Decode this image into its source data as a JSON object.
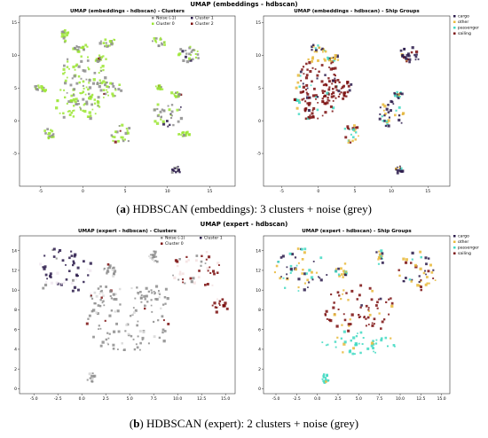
{
  "figure": {
    "top_title": "UMAP (embeddings - hdbscan)",
    "bottom_title": "UMAP (expert - hdbscan)",
    "caption_a_tag": "a",
    "caption_a_text": "HDBSCAN (embeddings): 3 clusters + noise (grey)",
    "caption_b_tag": "b",
    "caption_b_text": "HDBSCAN (expert): 2 clusters + noise (grey)"
  },
  "colors": {
    "noise": "#8c8c8c",
    "cluster0_emb": "#9be533",
    "cluster1_emb": "#2a1a4a",
    "cluster2_emb": "#7a0d0d",
    "cluster0_exp": "#7a0d0d",
    "cluster1_exp": "#2a1a4a",
    "cargo": "#2a1a4a",
    "other": "#e8b83a",
    "passenger": "#3fd9c2",
    "sailing": "#7a0d0d"
  },
  "chart_data": [
    {
      "type": "scatter",
      "title": "UMAP (embeddings - hdbscan) - Clusters",
      "xlim": [
        -7.5,
        18
      ],
      "ylim": [
        -10,
        16
      ],
      "xticks": [
        "-5",
        "0",
        "5",
        "10",
        "15"
      ],
      "yticks": [
        "15",
        "10",
        "5",
        "0",
        "-5"
      ],
      "legend_placement": "top-right",
      "legend": [
        "Noise (-1)",
        "Cluster 0",
        "Cluster 1",
        "Cluster 2"
      ],
      "series": [
        {
          "name": "Noise (-1)",
          "color_key": "noise"
        },
        {
          "name": "Cluster 0",
          "color_key": "cluster0_emb"
        },
        {
          "name": "Cluster 1",
          "color_key": "cluster1_emb"
        },
        {
          "name": "Cluster 2",
          "color_key": "cluster2_emb"
        }
      ],
      "blobs": [
        {
          "x": 0,
          "y": 6,
          "rx": 3.0,
          "ry": 4.0,
          "s": 0.3
        },
        {
          "x": -0.5,
          "y": 2.5,
          "rx": 2.8,
          "ry": 2.5,
          "s": 0.3
        },
        {
          "x": 3,
          "y": 5,
          "rx": 1.5,
          "ry": 1.8,
          "s": 0.3
        },
        {
          "x": 0,
          "y": 11,
          "rx": 1.2,
          "ry": 0.6,
          "s": 0.3
        },
        {
          "x": -2,
          "y": 13,
          "rx": 0.4,
          "ry": 1.0,
          "s": 0.3
        },
        {
          "x": 2,
          "y": 9.5,
          "rx": 1.0,
          "ry": 0.6,
          "s": 0.3
        },
        {
          "x": 3,
          "y": 12,
          "rx": 1.0,
          "ry": 0.6,
          "s": 0.3
        },
        {
          "x": 9,
          "y": 12,
          "rx": 0.8,
          "ry": 0.6,
          "s": 0.3
        },
        {
          "x": 12.5,
          "y": 10,
          "rx": 1.5,
          "ry": 1.3,
          "s": 0.3
        },
        {
          "x": 10,
          "y": 1,
          "rx": 1.8,
          "ry": 2.0,
          "s": 0.3
        },
        {
          "x": 11,
          "y": 4,
          "rx": 0.6,
          "ry": 0.5,
          "s": 0.3
        },
        {
          "x": 12,
          "y": -2,
          "rx": 0.6,
          "ry": 0.5,
          "s": 0.3
        },
        {
          "x": 4.5,
          "y": -2,
          "rx": 1.2,
          "ry": 1.5,
          "s": 0.3
        },
        {
          "x": -5,
          "y": 5,
          "rx": 0.8,
          "ry": 0.5,
          "s": 0.3
        },
        {
          "x": -4,
          "y": -2,
          "rx": 0.8,
          "ry": 0.7,
          "s": 0.3
        },
        {
          "x": 9,
          "y": 5,
          "rx": 0.5,
          "ry": 0.4,
          "s": 0.3
        },
        {
          "x": 11,
          "y": -7.5,
          "rx": 0.5,
          "ry": 0.5,
          "s": 0.3
        }
      ]
    },
    {
      "type": "scatter",
      "title": "UMAP (embeddings - hdbscan) - Ship Groups",
      "xlim": [
        -7.5,
        18
      ],
      "ylim": [
        -10,
        16
      ],
      "xticks": [
        "-5",
        "0",
        "5",
        "10",
        "15"
      ],
      "yticks": [
        "15",
        "10",
        "5",
        "0",
        "-5"
      ],
      "legend_placement": "top-right",
      "legend": [
        "cargo",
        "other",
        "passenger",
        "sailing"
      ],
      "series": [
        {
          "name": "cargo",
          "color_key": "cargo"
        },
        {
          "name": "other",
          "color_key": "other"
        },
        {
          "name": "passenger",
          "color_key": "passenger"
        },
        {
          "name": "sailing",
          "color_key": "sailing"
        }
      ],
      "blobs": [
        {
          "x": 0,
          "y": 6,
          "rx": 3.0,
          "ry": 4.0,
          "s": 0.3
        },
        {
          "x": -0.5,
          "y": 2.5,
          "rx": 2.8,
          "ry": 2.5,
          "s": 0.3
        },
        {
          "x": 3,
          "y": 5,
          "rx": 1.5,
          "ry": 1.8,
          "s": 0.3
        },
        {
          "x": 0,
          "y": 11,
          "rx": 1.2,
          "ry": 0.6,
          "s": 0.3
        },
        {
          "x": 2,
          "y": 9.5,
          "rx": 1.0,
          "ry": 0.6,
          "s": 0.3
        },
        {
          "x": 12.5,
          "y": 10,
          "rx": 1.5,
          "ry": 1.3,
          "s": 0.3
        },
        {
          "x": 10,
          "y": 1,
          "rx": 1.8,
          "ry": 2.0,
          "s": 0.3
        },
        {
          "x": 11,
          "y": 4,
          "rx": 0.6,
          "ry": 0.5,
          "s": 0.3
        },
        {
          "x": 4.5,
          "y": -2,
          "rx": 1.2,
          "ry": 1.5,
          "s": 0.3
        },
        {
          "x": 11,
          "y": -7.5,
          "rx": 0.5,
          "ry": 0.5,
          "s": 0.3
        }
      ]
    },
    {
      "type": "scatter",
      "title": "UMAP (expert - hdbscan) - Clusters",
      "xlim": [
        -6.5,
        16
      ],
      "ylim": [
        -0.5,
        15.5
      ],
      "xticks": [
        "-5.0",
        "-2.5",
        "0.0",
        "2.5",
        "5.0",
        "7.5",
        "10.0",
        "12.5",
        "15.0"
      ],
      "yticks": [
        "14",
        "12",
        "10",
        "8",
        "6",
        "4",
        "2",
        "0"
      ],
      "legend_placement": "top-right",
      "legend": [
        "Noise (-1)",
        "Cluster 0",
        "Cluster 1"
      ],
      "series": [
        {
          "name": "Noise (-1)",
          "color_key": "noise"
        },
        {
          "name": "Cluster 0",
          "color_key": "cluster0_exp"
        },
        {
          "name": "Cluster 1",
          "color_key": "cluster1_exp"
        }
      ],
      "blobs": [
        {
          "x": -2,
          "y": 12,
          "rx": 3.2,
          "ry": 2.3,
          "s": 0.3
        },
        {
          "x": 12,
          "y": 12,
          "rx": 2.6,
          "ry": 2.0,
          "s": 0.3
        },
        {
          "x": 5,
          "y": 7,
          "rx": 4.5,
          "ry": 3.5,
          "s": 0.3
        },
        {
          "x": 2,
          "y": 9.5,
          "rx": 1.5,
          "ry": 1.0,
          "s": 0.3
        },
        {
          "x": 7.5,
          "y": 9.5,
          "rx": 1.6,
          "ry": 1.0,
          "s": 0.3
        },
        {
          "x": 3,
          "y": 12,
          "rx": 0.8,
          "ry": 0.7,
          "s": 0.3
        },
        {
          "x": 7.5,
          "y": 13.5,
          "rx": 0.5,
          "ry": 0.8,
          "s": 0.3
        },
        {
          "x": 14.5,
          "y": 8.5,
          "rx": 0.8,
          "ry": 0.7,
          "s": 0.3
        },
        {
          "x": 1,
          "y": 1,
          "rx": 0.3,
          "ry": 0.5,
          "s": 0.3
        }
      ]
    },
    {
      "type": "scatter",
      "title": "UMAP (expert - hdbscan) - Ship Groups",
      "xlim": [
        -6.5,
        16
      ],
      "ylim": [
        -0.5,
        15.5
      ],
      "xticks": [
        "-5.0",
        "-2.5",
        "0.0",
        "2.5",
        "5.0",
        "7.5",
        "10.0",
        "12.5",
        "15.0"
      ],
      "yticks": [
        "14",
        "12",
        "10",
        "8",
        "6",
        "4",
        "2",
        "0"
      ],
      "legend_placement": "top-right",
      "legend": [
        "cargo",
        "other",
        "passenger",
        "sailing"
      ],
      "series": [
        {
          "name": "cargo",
          "color_key": "cargo"
        },
        {
          "name": "other",
          "color_key": "other"
        },
        {
          "name": "passenger",
          "color_key": "passenger"
        },
        {
          "name": "sailing",
          "color_key": "sailing"
        }
      ],
      "blobs": [
        {
          "x": -2,
          "y": 12,
          "rx": 3.2,
          "ry": 2.3,
          "s": 0.3
        },
        {
          "x": 12,
          "y": 12,
          "rx": 2.6,
          "ry": 2.0,
          "s": 0.3
        },
        {
          "x": 5,
          "y": 8,
          "rx": 4.3,
          "ry": 2.5,
          "s": 0.3
        },
        {
          "x": 5,
          "y": 4.5,
          "rx": 4.5,
          "ry": 1.2,
          "s": 0.3
        },
        {
          "x": 3,
          "y": 12,
          "rx": 0.8,
          "ry": 0.7,
          "s": 0.3
        },
        {
          "x": 7.5,
          "y": 13.5,
          "rx": 0.5,
          "ry": 0.8,
          "s": 0.3
        },
        {
          "x": 1,
          "y": 1,
          "rx": 0.3,
          "ry": 0.5,
          "s": 0.3
        }
      ]
    }
  ]
}
